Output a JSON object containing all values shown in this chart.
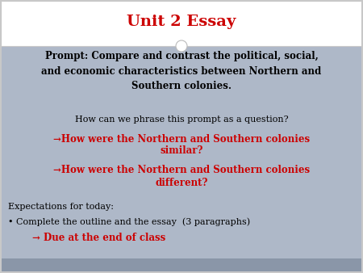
{
  "title": "Unit 2 Essay",
  "title_color": "#cc0000",
  "title_fontsize": 14,
  "title_bg": "#ffffff",
  "body_bg": "#aeb8c8",
  "bottom_stripe": "#8a96a8",
  "border_color": "#c8c8c8",
  "prompt_text": "Prompt: Compare and contrast the political, social,\nand economic characteristics between Northern and\nSouthern colonies.",
  "prompt_color": "#000000",
  "prompt_fontsize": 8.5,
  "phrase_text": "How can we phrase this prompt as a question?",
  "phrase_color": "#000000",
  "phrase_fontsize": 8,
  "similar_line1": "→How were the Northern and Southern colonies",
  "similar_line2": "similar?",
  "similar_color": "#cc0000",
  "similar_fontsize": 8.5,
  "different_line1": "→How were the Northern and Southern colonies",
  "different_line2": "different?",
  "different_color": "#cc0000",
  "different_fontsize": 8.5,
  "expectations_text": "Expectations for today:",
  "expectations_color": "#000000",
  "expectations_fontsize": 8,
  "bullet_text": "Complete the outline and the essay  (3 paragraphs)",
  "bullet_color": "#000000",
  "bullet_fontsize": 8,
  "due_text": "→ Due at the end of class",
  "due_color": "#cc0000",
  "due_fontsize": 8.5
}
